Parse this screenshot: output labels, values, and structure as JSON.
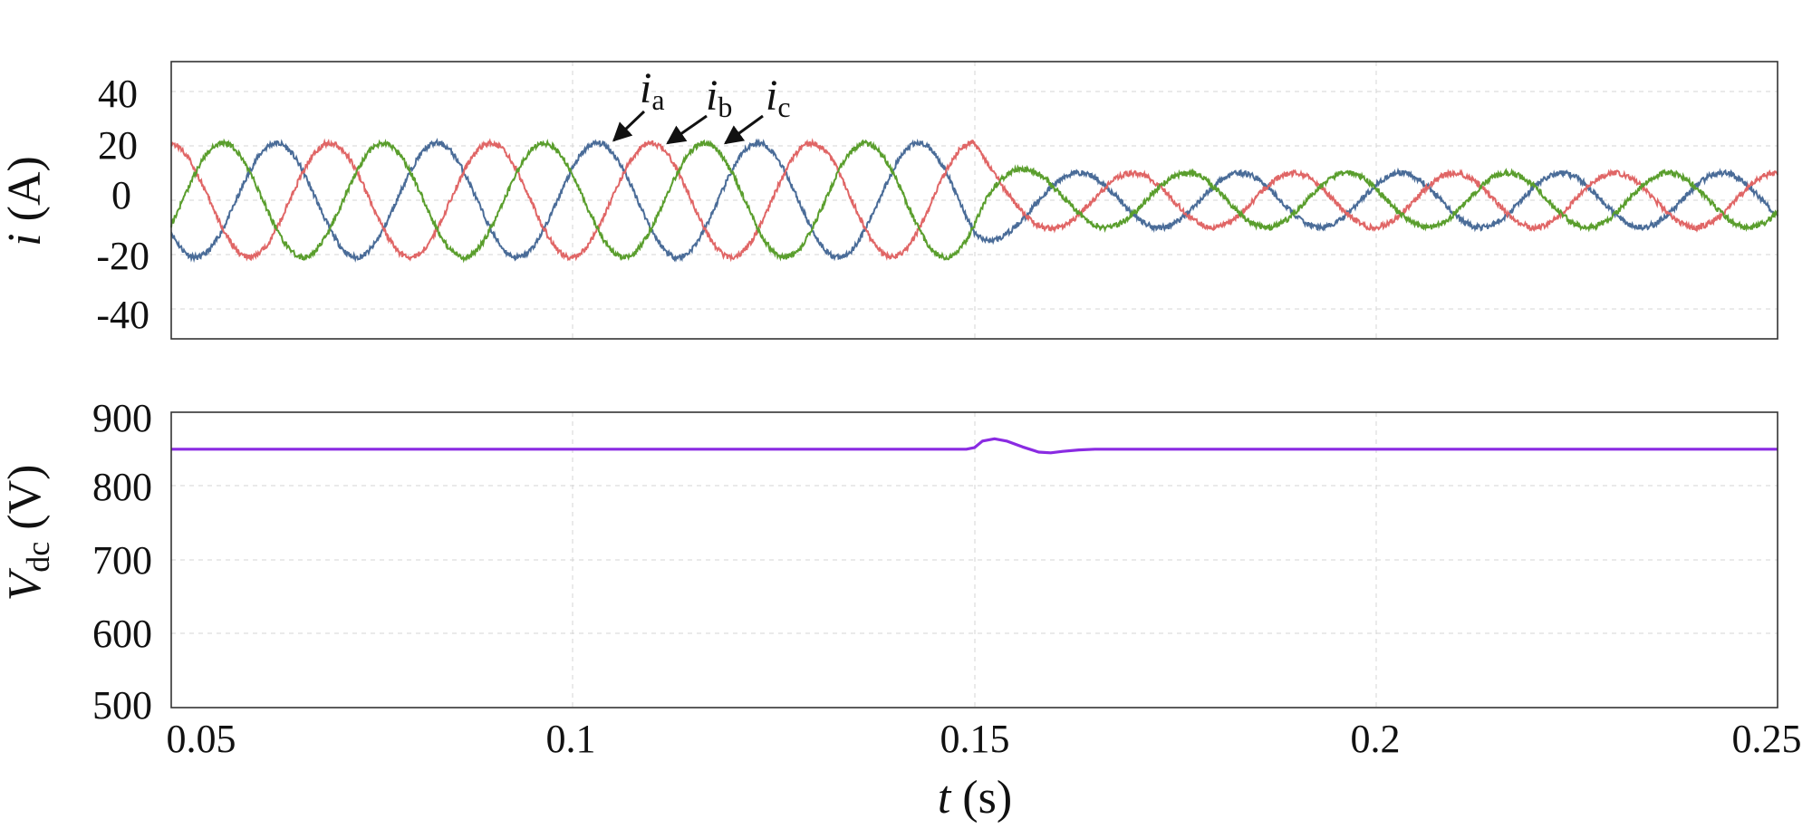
{
  "chart_data": [
    {
      "type": "line",
      "ylabel": "i (A)",
      "ylabel_var": "i",
      "ylabel_unit": "(A)",
      "xlim": [
        0.05,
        0.25
      ],
      "ylim": [
        -50,
        52
      ],
      "yticks": [
        40,
        20,
        0,
        -20,
        -40
      ],
      "ytick_labels": [
        "40",
        "20",
        "0",
        "-20",
        "-40"
      ],
      "xticks": [
        0.05,
        0.1,
        0.15,
        0.2,
        0.25
      ],
      "grid": true,
      "fundamental_hz": 50,
      "step_time": 0.15,
      "amplitude_before": 21,
      "amplitude_after": 10,
      "ripple": 1.0,
      "series": [
        {
          "name": "ia",
          "label_var": "i",
          "label_sub": "a",
          "color": "#4a6c98",
          "phase_deg": 0,
          "pointer": {
            "tx": 0.1051,
            "ty": 22
          }
        },
        {
          "name": "ib",
          "label_var": "i",
          "label_sub": "b",
          "color": "#e06666",
          "phase_deg": -120,
          "pointer": {
            "tx": 0.1118,
            "ty": 21
          }
        },
        {
          "name": "ic",
          "label_var": "i",
          "label_sub": "c",
          "color": "#5a9e2d",
          "phase_deg": 120,
          "pointer": {
            "tx": 0.119,
            "ty": 21
          }
        }
      ]
    },
    {
      "type": "line",
      "ylabel": "Vdc (V)",
      "ylabel_var": "V",
      "ylabel_sub": "dc",
      "ylabel_unit": "(V)",
      "xlim": [
        0.05,
        0.25
      ],
      "ylim": [
        500,
        900
      ],
      "yticks": [
        900,
        800,
        700,
        600,
        500
      ],
      "ytick_labels": [
        "900",
        "800",
        "700",
        "600",
        "500"
      ],
      "xticks": [
        0.05,
        0.1,
        0.15,
        0.2,
        0.25
      ],
      "xtick_labels": [
        "0.05",
        "0.1",
        "0.15",
        "0.2",
        "0.25"
      ],
      "xlabel": "t (s)",
      "xlabel_var": "t",
      "xlabel_unit": "(s)",
      "grid": true,
      "series": [
        {
          "name": "Vdc",
          "color": "#8a2be2",
          "x": [
            0.05,
            0.149,
            0.15,
            0.151,
            0.1525,
            0.154,
            0.156,
            0.158,
            0.1595,
            0.161,
            0.163,
            0.165,
            0.17,
            0.2,
            0.25
          ],
          "y": [
            850,
            850,
            852,
            861,
            864,
            861,
            853,
            846,
            845,
            847,
            849,
            850,
            850,
            850,
            850
          ]
        }
      ]
    }
  ]
}
